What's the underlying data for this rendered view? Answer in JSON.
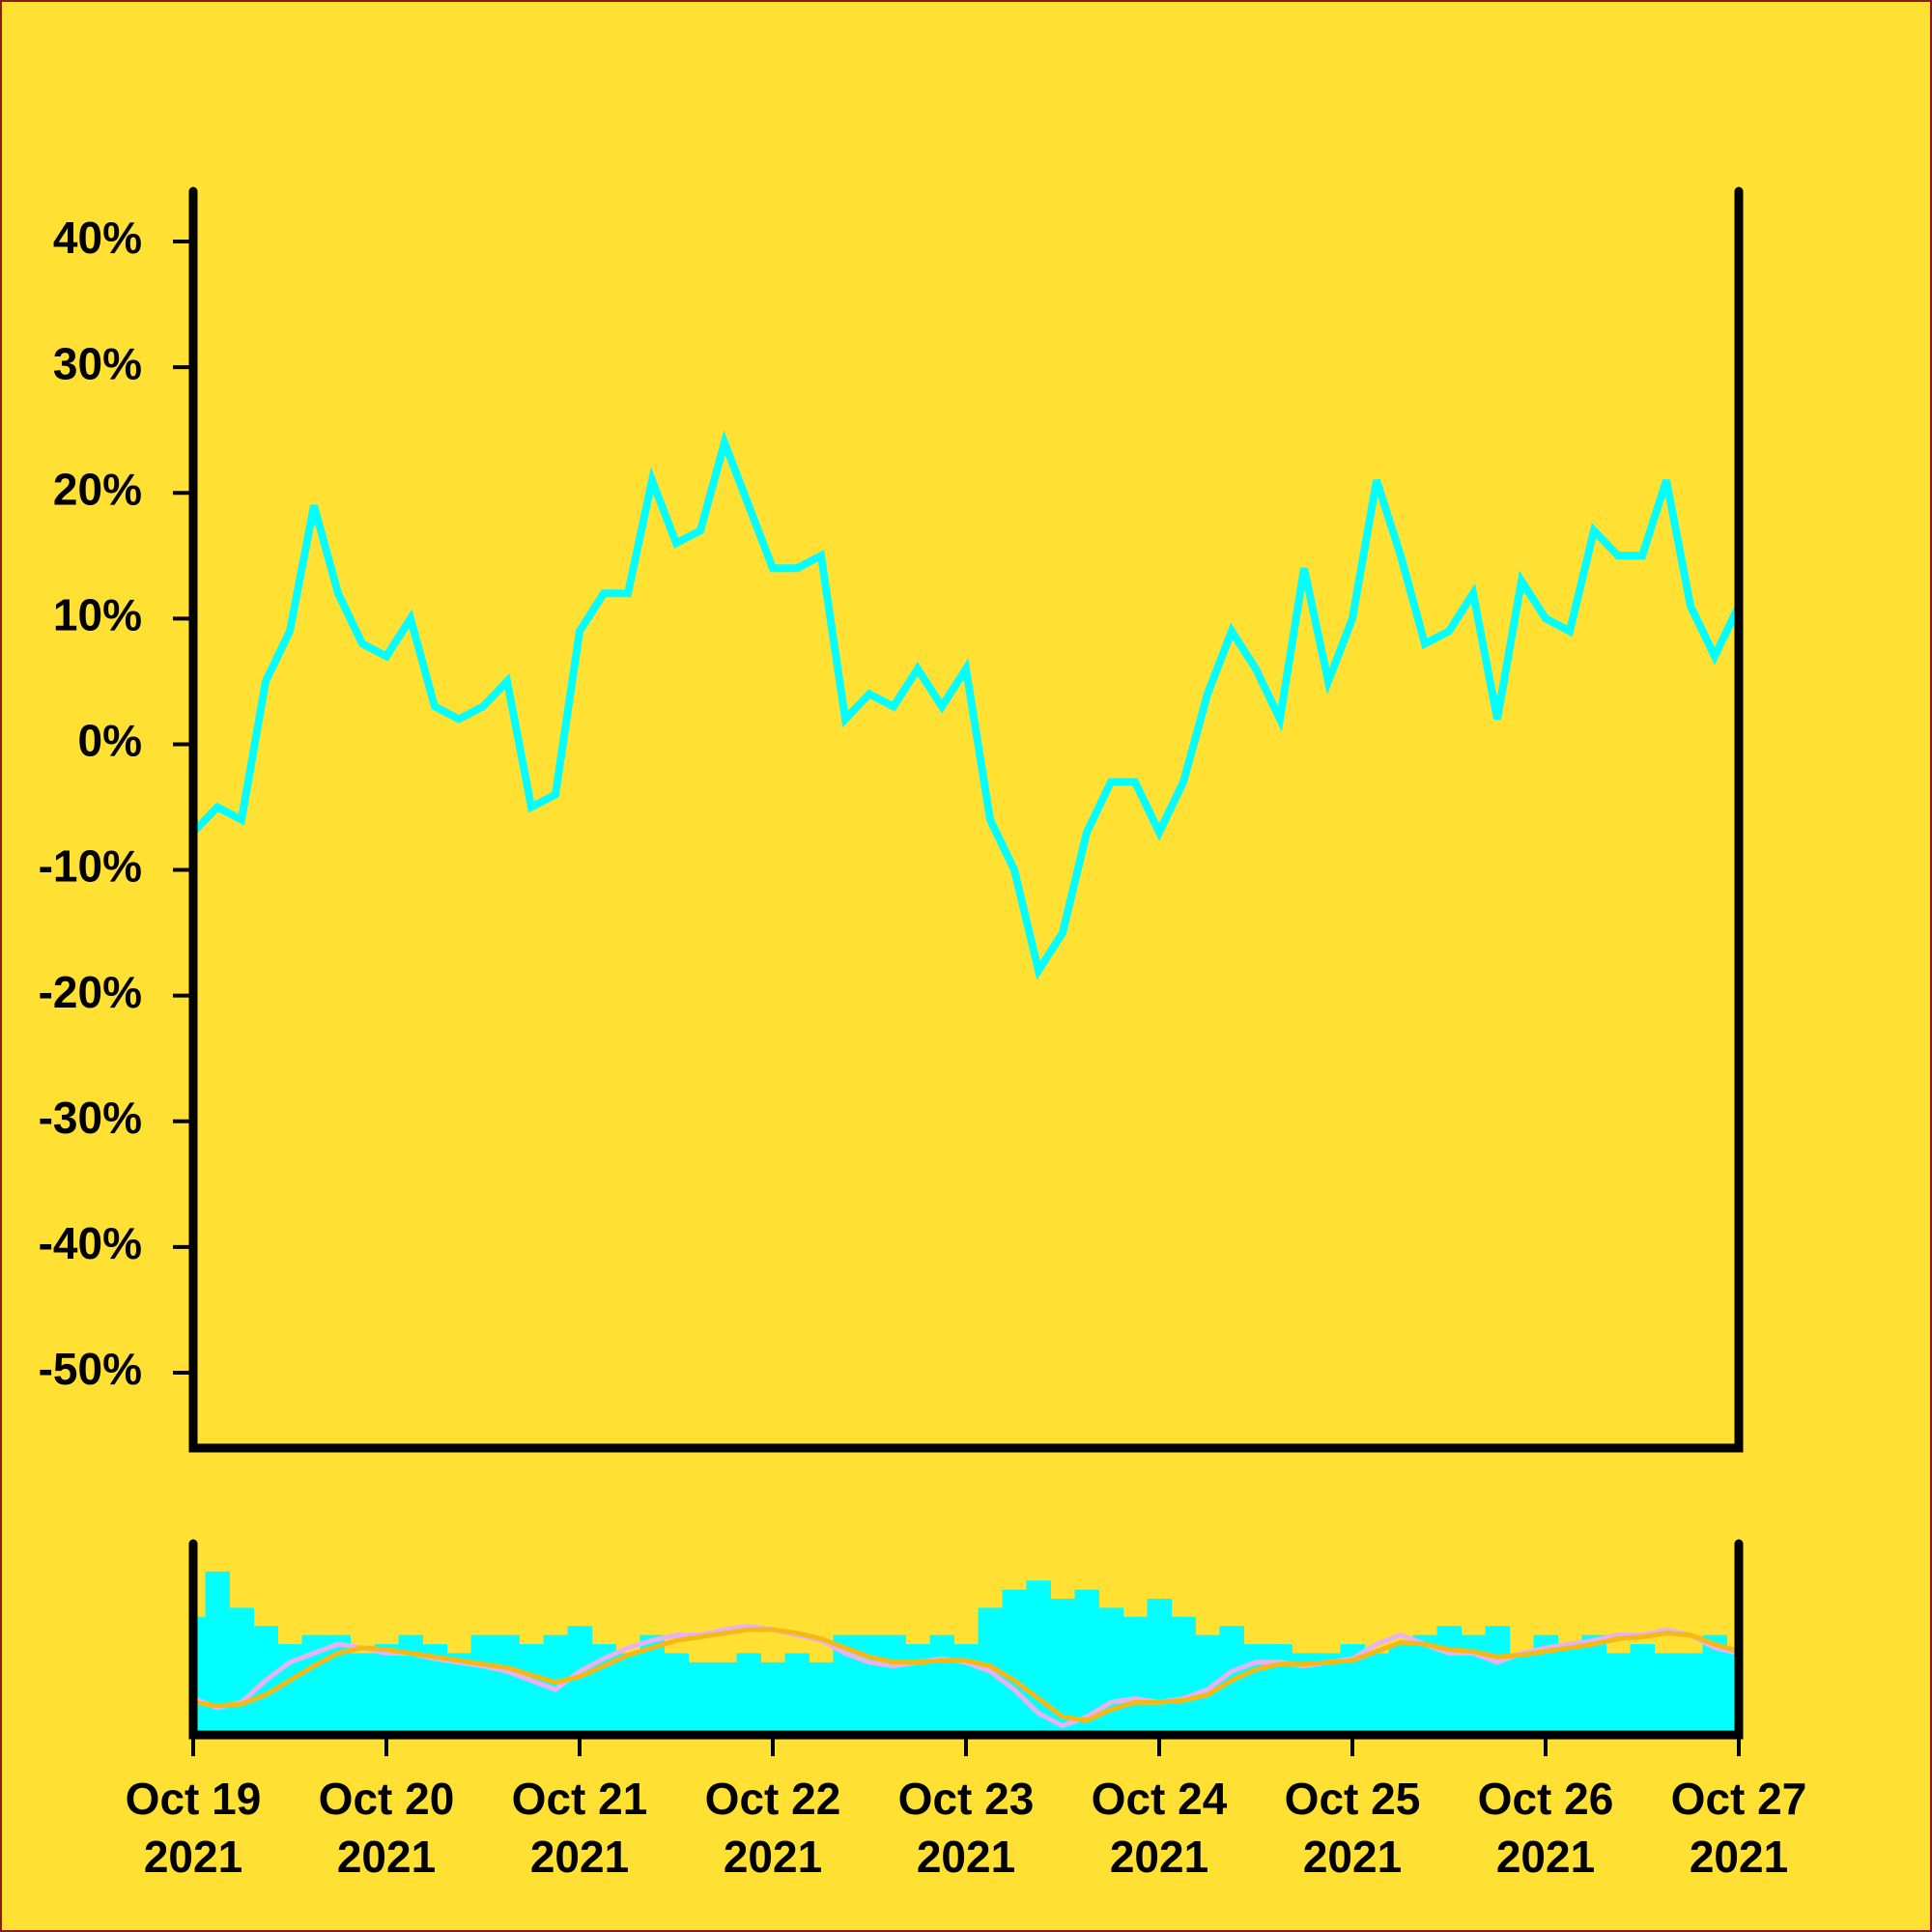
{
  "chart_data": [
    {
      "type": "line",
      "color": "#00FFFF",
      "xlim": [
        "2021-10-19T00:00",
        "2021-10-27T00:00"
      ],
      "x": [
        "2021-10-19T00:00",
        "2021-10-19T03:00",
        "2021-10-19T06:00",
        "2021-10-19T09:00",
        "2021-10-19T12:00",
        "2021-10-19T15:00",
        "2021-10-19T18:00",
        "2021-10-19T21:00",
        "2021-10-20T00:00",
        "2021-10-20T03:00",
        "2021-10-20T06:00",
        "2021-10-20T09:00",
        "2021-10-20T12:00",
        "2021-10-20T15:00",
        "2021-10-20T18:00",
        "2021-10-20T21:00",
        "2021-10-21T00:00",
        "2021-10-21T03:00",
        "2021-10-21T06:00",
        "2021-10-21T09:00",
        "2021-10-21T12:00",
        "2021-10-21T15:00",
        "2021-10-21T18:00",
        "2021-10-21T21:00",
        "2021-10-22T00:00",
        "2021-10-22T03:00",
        "2021-10-22T06:00",
        "2021-10-22T09:00",
        "2021-10-22T12:00",
        "2021-10-22T15:00",
        "2021-10-22T18:00",
        "2021-10-22T21:00",
        "2021-10-23T00:00",
        "2021-10-23T03:00",
        "2021-10-23T06:00",
        "2021-10-23T09:00",
        "2021-10-23T12:00",
        "2021-10-23T15:00",
        "2021-10-23T18:00",
        "2021-10-23T21:00",
        "2021-10-24T00:00",
        "2021-10-24T03:00",
        "2021-10-24T06:00",
        "2021-10-24T09:00",
        "2021-10-24T12:00",
        "2021-10-24T15:00",
        "2021-10-24T18:00",
        "2021-10-24T21:00",
        "2021-10-25T00:00",
        "2021-10-25T03:00",
        "2021-10-25T06:00",
        "2021-10-25T09:00",
        "2021-10-25T12:00",
        "2021-10-25T15:00",
        "2021-10-25T18:00",
        "2021-10-25T21:00",
        "2021-10-26T00:00",
        "2021-10-26T03:00",
        "2021-10-26T06:00",
        "2021-10-26T09:00",
        "2021-10-26T12:00",
        "2021-10-26T15:00",
        "2021-10-26T18:00",
        "2021-10-26T21:00",
        "2021-10-27T00:00"
      ],
      "values": [
        -7,
        -5,
        -6,
        5,
        9,
        19,
        12,
        8,
        7,
        10,
        3,
        2,
        3,
        5,
        -5,
        -4,
        9,
        12,
        12,
        21,
        16,
        17,
        24,
        19,
        14,
        14,
        15,
        2,
        4,
        3,
        6,
        3,
        6,
        -6,
        -10,
        -18,
        -15,
        -7,
        -3,
        -3,
        -7,
        -3,
        4,
        9,
        6,
        2,
        14,
        5,
        10,
        21,
        15,
        8,
        9,
        12,
        2,
        13,
        10,
        9,
        17,
        15,
        15,
        21,
        11,
        7,
        11
      ],
      "ylim": [
        -56,
        44
      ],
      "yticks": [
        {
          "value": 40,
          "label": "40%"
        },
        {
          "value": 30,
          "label": "30%"
        },
        {
          "value": 20,
          "label": "20%"
        },
        {
          "value": 10,
          "label": "10%"
        },
        {
          "value": 0,
          "label": "0%"
        },
        {
          "value": -10,
          "label": "-10%"
        },
        {
          "value": -20,
          "label": "-20%"
        },
        {
          "value": -30,
          "label": "-30%"
        },
        {
          "value": -40,
          "label": "-40%"
        },
        {
          "value": -50,
          "label": "-50%"
        }
      ]
    },
    {
      "type": "bar",
      "color": "#00FFFF",
      "ylim": [
        0,
        100
      ],
      "values": [
        65,
        90,
        70,
        60,
        50,
        55,
        55,
        45,
        50,
        55,
        50,
        45,
        55,
        55,
        50,
        55,
        60,
        50,
        45,
        55,
        45,
        40,
        40,
        45,
        40,
        45,
        40,
        55,
        55,
        55,
        50,
        55,
        50,
        70,
        80,
        85,
        75,
        80,
        70,
        65,
        75,
        65,
        55,
        60,
        50,
        50,
        45,
        45,
        50,
        45,
        50,
        55,
        60,
        55,
        60,
        45,
        55,
        50,
        55,
        45,
        50,
        45,
        45,
        55,
        45
      ],
      "series": [
        {
          "color": "#E6B3F2",
          "values": [
            20,
            15,
            18,
            30,
            40,
            45,
            50,
            48,
            45,
            45,
            42,
            40,
            38,
            35,
            30,
            25,
            35,
            42,
            48,
            52,
            55,
            55,
            58,
            60,
            58,
            55,
            52,
            45,
            40,
            38,
            40,
            42,
            40,
            35,
            25,
            12,
            5,
            10,
            18,
            20,
            18,
            20,
            25,
            35,
            40,
            40,
            38,
            40,
            42,
            50,
            55,
            50,
            45,
            45,
            40,
            45,
            48,
            50,
            52,
            55,
            55,
            58,
            55,
            48,
            45
          ]
        },
        {
          "color": "#F5B915",
          "values": [
            18,
            16,
            17,
            22,
            30,
            38,
            45,
            48,
            47,
            45,
            43,
            41,
            39,
            37,
            33,
            29,
            32,
            38,
            44,
            48,
            52,
            54,
            56,
            58,
            58,
            56,
            53,
            48,
            43,
            40,
            40,
            41,
            41,
            38,
            30,
            20,
            10,
            8,
            14,
            18,
            18,
            19,
            22,
            30,
            36,
            39,
            39,
            40,
            41,
            46,
            51,
            50,
            47,
            46,
            43,
            44,
            46,
            48,
            50,
            53,
            54,
            56,
            55,
            50,
            46
          ]
        }
      ],
      "xticks": [
        {
          "value": "2021-10-19T00:00",
          "label": "Oct 19\n2021"
        },
        {
          "value": "2021-10-20T00:00",
          "label": "Oct 20\n2021"
        },
        {
          "value": "2021-10-21T00:00",
          "label": "Oct 21\n2021"
        },
        {
          "value": "2021-10-22T00:00",
          "label": "Oct 22\n2021"
        },
        {
          "value": "2021-10-23T00:00",
          "label": "Oct 23\n2021"
        },
        {
          "value": "2021-10-24T00:00",
          "label": "Oct 24\n2021"
        },
        {
          "value": "2021-10-25T00:00",
          "label": "Oct 25\n2021"
        },
        {
          "value": "2021-10-26T00:00",
          "label": "Oct 26\n2021"
        },
        {
          "value": "2021-10-27T00:00",
          "label": "Oct 27\n2021"
        }
      ]
    }
  ]
}
